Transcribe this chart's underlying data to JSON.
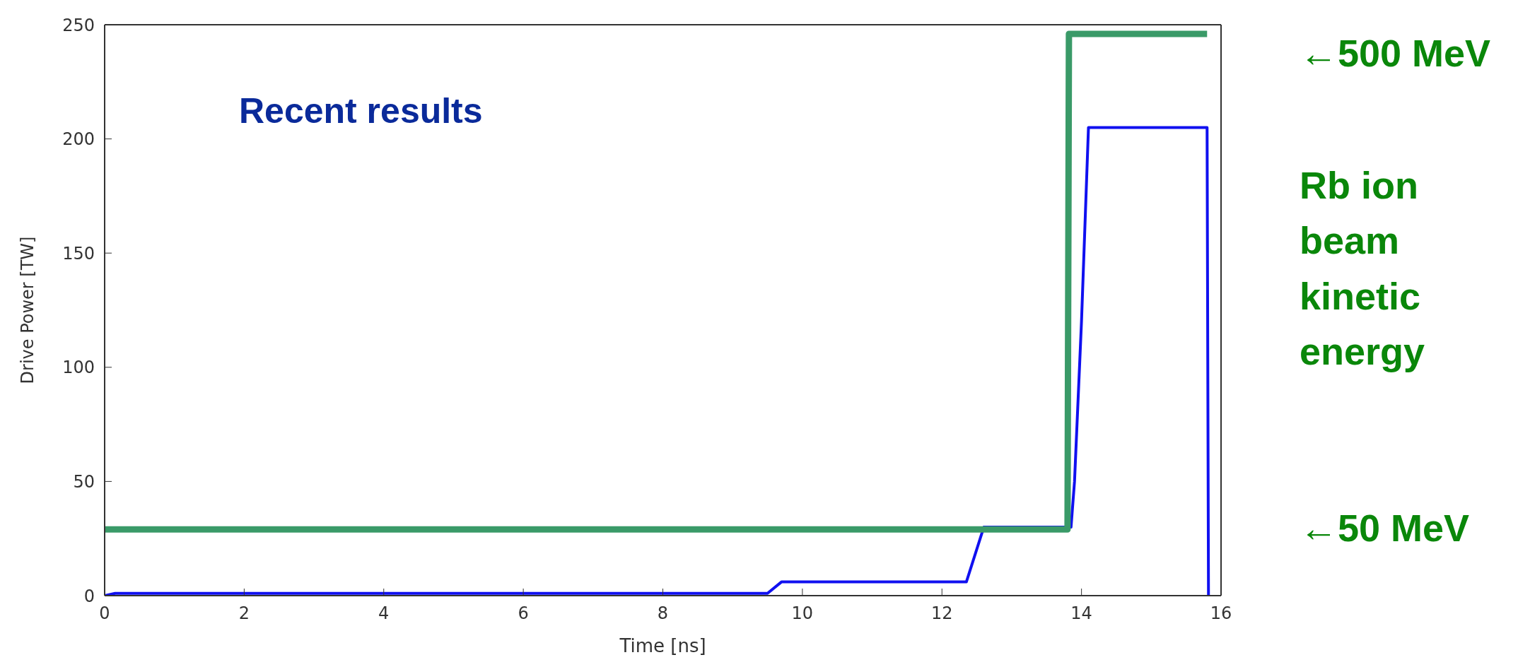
{
  "chart_data": {
    "type": "line",
    "title": "Recent results",
    "xlabel": "Time [ns]",
    "ylabel": "Drive Power [TW]",
    "annotations": [
      "←500 MeV",
      "Rb ion beam kinetic energy",
      "←50 MeV"
    ],
    "xlim": [
      0,
      16
    ],
    "xticks": [
      0,
      2,
      4,
      6,
      8,
      10,
      12,
      14,
      16
    ],
    "ylim": [
      0,
      250
    ],
    "yticks": [
      0,
      50,
      100,
      150,
      200,
      250
    ],
    "grid": false,
    "marker": "none",
    "line_style": "solid",
    "series": [
      {
        "color": "#1010f0",
        "x": [
          0,
          0.15,
          9.5,
          9.7,
          12.35,
          12.6,
          13.85,
          13.9,
          14.0,
          14.1,
          15.8,
          15.82
        ],
        "values": [
          0,
          1,
          1,
          6,
          6,
          30,
          30,
          50,
          120,
          205,
          205,
          0
        ]
      },
      {
        "color": "#3a9a68",
        "x": [
          0,
          13.8,
          13.82,
          15.8
        ],
        "values": [
          29,
          29,
          246,
          246
        ]
      }
    ]
  }
}
